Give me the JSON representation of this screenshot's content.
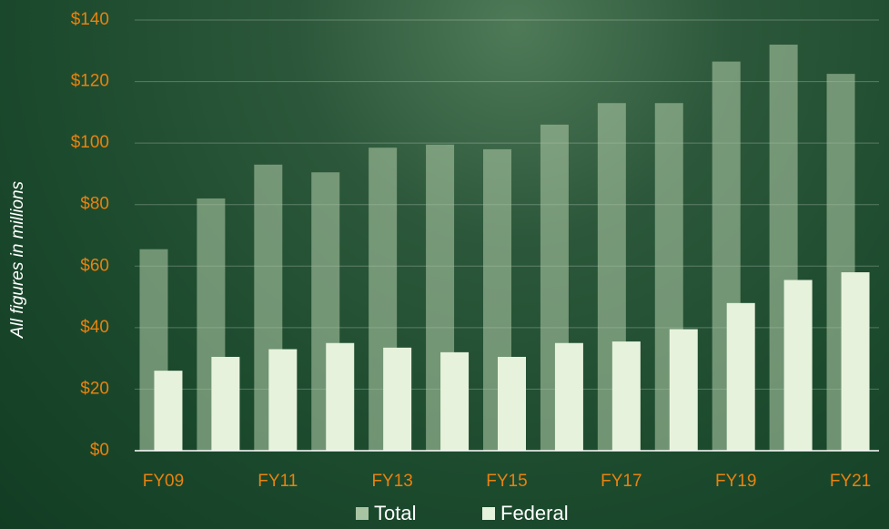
{
  "chart_data": {
    "type": "bar",
    "y_label": "All figures in millions",
    "categories": [
      "FY09",
      null,
      "FY11",
      null,
      "FY13",
      null,
      "FY15",
      null,
      "FY17",
      null,
      "FY19",
      null,
      "FY21"
    ],
    "series": [
      {
        "name": "Total",
        "color": "#a9c4a2",
        "values": [
          65.5,
          82,
          93,
          90.5,
          98.5,
          99.5,
          98,
          106,
          113,
          113,
          126.5,
          132,
          122.5
        ]
      },
      {
        "name": "Federal",
        "color": "#e6f2dc",
        "values": [
          26,
          30.5,
          33,
          35,
          33.5,
          32,
          30.5,
          35,
          35.5,
          39.5,
          48,
          55.5,
          58
        ]
      }
    ],
    "ylim": [
      0,
      140
    ],
    "yticks": [
      {
        "value": 0,
        "label": "$0"
      },
      {
        "value": 20,
        "label": "$20"
      },
      {
        "value": 40,
        "label": "$40"
      },
      {
        "value": 60,
        "label": "$60"
      },
      {
        "value": 80,
        "label": "$80"
      },
      {
        "value": 100,
        "label": "$100"
      },
      {
        "value": 120,
        "label": "$120"
      },
      {
        "value": 140,
        "label": "$140"
      }
    ],
    "grid": true,
    "legend": "bottom"
  }
}
